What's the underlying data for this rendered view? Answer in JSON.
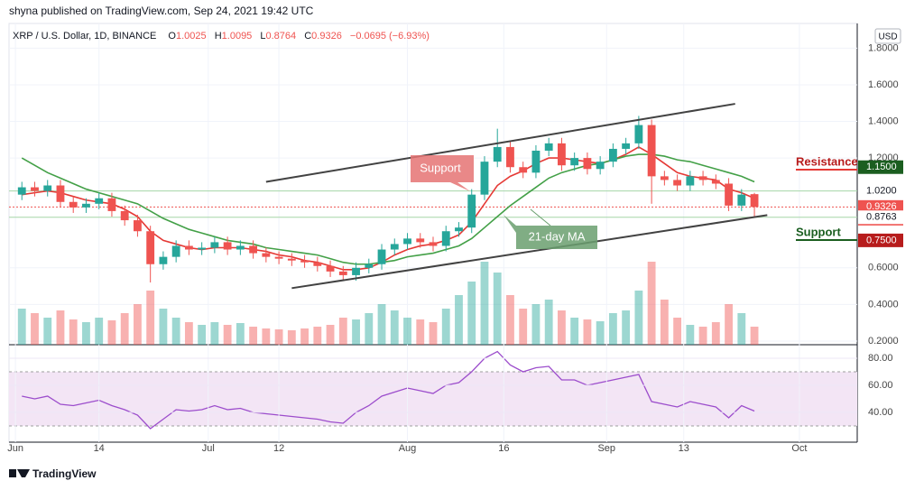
{
  "chart_data": {
    "type": "candlestick",
    "header": "shyna published on TradingView.com, Sep 24, 2021 19:42 UTC",
    "symbol": "XRP / U.S. Dollar, 1D, BINANCE",
    "legend_labels": [
      "O",
      "H",
      "L",
      "C"
    ],
    "change": "−0.0695 (−6.93%)",
    "currency": "USD",
    "footer": "TradingView",
    "up_color": "#26a69a",
    "down_color": "#ef5350",
    "x": [
      "2021-06-02",
      "2021-06-04",
      "2021-06-06",
      "2021-06-08",
      "2021-06-10",
      "2021-06-12",
      "2021-06-14",
      "2021-06-16",
      "2021-06-18",
      "2021-06-20",
      "2021-06-22",
      "2021-06-24",
      "2021-06-26",
      "2021-06-28",
      "2021-06-30",
      "2021-07-02",
      "2021-07-04",
      "2021-07-06",
      "2021-07-08",
      "2021-07-10",
      "2021-07-12",
      "2021-07-14",
      "2021-07-16",
      "2021-07-18",
      "2021-07-20",
      "2021-07-22",
      "2021-07-24",
      "2021-07-26",
      "2021-07-28",
      "2021-07-30",
      "2021-08-01",
      "2021-08-03",
      "2021-08-05",
      "2021-08-07",
      "2021-08-09",
      "2021-08-11",
      "2021-08-13",
      "2021-08-15",
      "2021-08-17",
      "2021-08-19",
      "2021-08-21",
      "2021-08-23",
      "2021-08-25",
      "2021-08-27",
      "2021-08-29",
      "2021-08-31",
      "2021-09-02",
      "2021-09-04",
      "2021-09-06",
      "2021-09-08",
      "2021-09-10",
      "2021-09-12",
      "2021-09-14",
      "2021-09-16",
      "2021-09-18",
      "2021-09-20",
      "2021-09-22",
      "2021-09-24"
    ],
    "open": [
      1.0,
      1.04,
      1.02,
      1.05,
      0.96,
      0.93,
      0.95,
      0.98,
      0.91,
      0.86,
      0.8,
      0.62,
      0.66,
      0.72,
      0.7,
      0.71,
      0.74,
      0.7,
      0.72,
      0.68,
      0.66,
      0.65,
      0.64,
      0.63,
      0.61,
      0.58,
      0.56,
      0.6,
      0.62,
      0.7,
      0.73,
      0.76,
      0.74,
      0.72,
      0.8,
      0.82,
      1.0,
      1.18,
      1.26,
      1.15,
      1.12,
      1.24,
      1.28,
      1.16,
      1.2,
      1.14,
      1.18,
      1.25,
      1.28,
      1.38,
      1.1,
      1.08,
      1.05,
      1.1,
      1.08,
      1.06,
      0.94,
      1.0025
    ],
    "high": [
      1.07,
      1.07,
      1.08,
      1.08,
      0.99,
      0.98,
      1.01,
      1.01,
      0.94,
      0.89,
      0.83,
      0.69,
      0.75,
      0.75,
      0.74,
      0.77,
      0.77,
      0.75,
      0.75,
      0.71,
      0.69,
      0.68,
      0.67,
      0.66,
      0.64,
      0.61,
      0.63,
      0.65,
      0.73,
      0.76,
      0.79,
      0.79,
      0.77,
      0.83,
      0.85,
      1.03,
      1.21,
      1.36,
      1.29,
      1.18,
      1.27,
      1.31,
      1.31,
      1.23,
      1.23,
      1.21,
      1.28,
      1.31,
      1.43,
      1.41,
      1.13,
      1.11,
      1.13,
      1.13,
      1.11,
      1.09,
      1.03,
      1.0095
    ],
    "low": [
      0.97,
      0.99,
      0.99,
      0.93,
      0.9,
      0.9,
      0.92,
      0.88,
      0.83,
      0.77,
      0.52,
      0.59,
      0.63,
      0.67,
      0.67,
      0.68,
      0.67,
      0.67,
      0.65,
      0.63,
      0.62,
      0.61,
      0.6,
      0.58,
      0.55,
      0.53,
      0.53,
      0.57,
      0.59,
      0.67,
      0.7,
      0.71,
      0.69,
      0.69,
      0.77,
      0.79,
      0.97,
      1.15,
      1.12,
      1.09,
      1.09,
      1.21,
      1.13,
      1.13,
      1.11,
      1.11,
      1.15,
      1.22,
      1.25,
      0.95,
      1.05,
      1.02,
      1.02,
      1.05,
      1.03,
      0.91,
      0.91,
      0.8764
    ],
    "close": [
      1.04,
      1.02,
      1.05,
      0.96,
      0.93,
      0.95,
      0.98,
      0.91,
      0.86,
      0.8,
      0.62,
      0.66,
      0.72,
      0.7,
      0.71,
      0.74,
      0.7,
      0.72,
      0.68,
      0.66,
      0.65,
      0.64,
      0.63,
      0.61,
      0.58,
      0.56,
      0.6,
      0.62,
      0.7,
      0.73,
      0.76,
      0.74,
      0.72,
      0.8,
      0.82,
      1.0,
      1.18,
      1.26,
      1.15,
      1.12,
      1.24,
      1.28,
      1.16,
      1.2,
      1.14,
      1.18,
      1.25,
      1.28,
      1.38,
      1.1,
      1.08,
      1.05,
      1.1,
      1.08,
      1.06,
      0.94,
      1.0,
      0.9326
    ],
    "volume": [
      40,
      35,
      30,
      38,
      28,
      25,
      30,
      27,
      35,
      45,
      60,
      40,
      30,
      25,
      22,
      25,
      22,
      24,
      20,
      18,
      17,
      16,
      18,
      20,
      22,
      30,
      28,
      35,
      45,
      38,
      30,
      28,
      25,
      40,
      55,
      70,
      92,
      80,
      55,
      40,
      45,
      50,
      38,
      30,
      28,
      26,
      35,
      38,
      60,
      92,
      50,
      30,
      22,
      20,
      25,
      45,
      35,
      20
    ],
    "vlim": [
      0,
      100
    ],
    "rsi": [
      52,
      50,
      52,
      46,
      45,
      47,
      49,
      45,
      42,
      38,
      28,
      35,
      42,
      41,
      42,
      45,
      42,
      43,
      40,
      39,
      38,
      37,
      36,
      35,
      33,
      32,
      40,
      45,
      52,
      55,
      58,
      56,
      54,
      60,
      62,
      70,
      80,
      85,
      75,
      70,
      73,
      74,
      64,
      64,
      60,
      62,
      64,
      66,
      68,
      48,
      46,
      44,
      48,
      46,
      44,
      36,
      45,
      41
    ],
    "rsi_ylim": [
      18,
      88
    ],
    "rsi_yticks": [
      {
        "value": 80,
        "label": "80.00"
      },
      {
        "value": 60,
        "label": "60.00"
      },
      {
        "value": 40,
        "label": "40.00"
      }
    ],
    "rsi_band": [
      30,
      70
    ],
    "ma": [
      {
        "color": "#e53935",
        "values": [
          1.0,
          1.01,
          1.02,
          1.01,
          0.99,
          0.97,
          0.96,
          0.95,
          0.92,
          0.88,
          0.8,
          0.75,
          0.73,
          0.71,
          0.7,
          0.71,
          0.71,
          0.71,
          0.7,
          0.69,
          0.67,
          0.66,
          0.64,
          0.63,
          0.61,
          0.59,
          0.59,
          0.6,
          0.63,
          0.67,
          0.7,
          0.72,
          0.73,
          0.75,
          0.78,
          0.85,
          0.95,
          1.05,
          1.1,
          1.13,
          1.17,
          1.2,
          1.2,
          1.19,
          1.18,
          1.17,
          1.19,
          1.22,
          1.26,
          1.22,
          1.17,
          1.12,
          1.1,
          1.09,
          1.08,
          1.03,
          1.01,
          0.98
        ]
      },
      {
        "color": "#43a047",
        "values": [
          1.2,
          1.16,
          1.12,
          1.09,
          1.06,
          1.03,
          1.01,
          0.99,
          0.97,
          0.95,
          0.91,
          0.87,
          0.84,
          0.81,
          0.79,
          0.77,
          0.75,
          0.74,
          0.73,
          0.71,
          0.7,
          0.69,
          0.68,
          0.67,
          0.65,
          0.63,
          0.62,
          0.62,
          0.63,
          0.64,
          0.66,
          0.67,
          0.68,
          0.7,
          0.72,
          0.76,
          0.82,
          0.88,
          0.94,
          0.99,
          1.04,
          1.09,
          1.12,
          1.14,
          1.16,
          1.17,
          1.19,
          1.21,
          1.22,
          1.22,
          1.21,
          1.19,
          1.18,
          1.16,
          1.14,
          1.12,
          1.1,
          1.07
        ]
      }
    ],
    "trendlines": [
      {
        "x": [
          "2021-07-10",
          "2021-09-21"
        ],
        "y": [
          1.07,
          1.496
        ]
      },
      {
        "x": [
          "2021-07-14",
          "2021-09-26"
        ],
        "y": [
          0.489,
          0.888
        ]
      }
    ],
    "xlim": [
      "2021-05-31",
      "2021-10-10"
    ],
    "xticks": [
      {
        "value": "2021-06-01",
        "label": "Jun"
      },
      {
        "value": "2021-06-14",
        "label": "14"
      },
      {
        "value": "2021-07-01",
        "label": "Jul"
      },
      {
        "value": "2021-07-12",
        "label": "12"
      },
      {
        "value": "2021-08-01",
        "label": "Aug"
      },
      {
        "value": "2021-08-16",
        "label": "16"
      },
      {
        "value": "2021-09-01",
        "label": "Sep"
      },
      {
        "value": "2021-09-13",
        "label": "13"
      },
      {
        "value": "2021-10-01",
        "label": "Oct"
      }
    ],
    "ylim": [
      0.18,
      1.935
    ],
    "yticks": [
      {
        "value": 1.8,
        "label": "1.8000"
      },
      {
        "value": 1.6,
        "label": "1.6000"
      },
      {
        "value": 1.4,
        "label": "1.4000"
      },
      {
        "value": 1.2,
        "label": "1.2000"
      },
      {
        "value": 0.6,
        "label": "0.6000"
      },
      {
        "value": 0.4,
        "label": "0.4000"
      },
      {
        "value": 0.2,
        "label": "0.2000"
      }
    ],
    "price_labels": [
      {
        "value": 1.15,
        "label": "1.1500",
        "color": "#1b5e20",
        "line": false
      },
      {
        "value": 1.02,
        "label": "1.0200",
        "color": "#ffffff",
        "line": true
      },
      {
        "value": 0.9326,
        "label": "0.9326",
        "sub": "04:17:20",
        "color": "#ef5350",
        "line": true
      },
      {
        "value": 0.8763,
        "label": "0.8763",
        "color": "#ffffff",
        "line": true
      },
      {
        "value": 0.75,
        "label": "0.7500",
        "color": "#b71c1c",
        "line": false
      }
    ],
    "annotations": [
      "Support",
      "21-day MA",
      "Resistance",
      "Support"
    ]
  }
}
